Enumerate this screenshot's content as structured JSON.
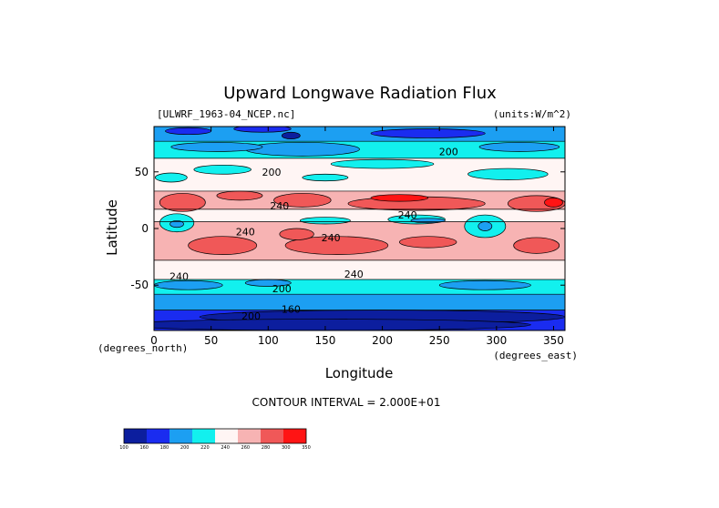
{
  "chart_data": {
    "type": "heatmap",
    "title": "Upward Longwave Radiation Flux",
    "dataset_label": "[ULWRF_1963-04_NCEP.nc]",
    "units_label": "(units:W/m^2)",
    "xlabel": "Longitude",
    "ylabel": "Latitude",
    "x_unit_label": "(degrees_east)",
    "y_unit_label": "(degrees_north)",
    "xlim": [
      0,
      360
    ],
    "ylim": [
      -90,
      90
    ],
    "x_ticks": [
      0,
      50,
      100,
      150,
      200,
      250,
      300,
      350
    ],
    "y_ticks": [
      50,
      0,
      -50
    ],
    "contour_interval_text": "CONTOUR INTERVAL = 2.000E+01",
    "contour_labels": [
      {
        "text": "200",
        "lon": 258,
        "lat": 68
      },
      {
        "text": "200",
        "lon": 103,
        "lat": 50
      },
      {
        "text": "240",
        "lon": 110,
        "lat": 20
      },
      {
        "text": "240",
        "lon": 80,
        "lat": -3
      },
      {
        "text": "240",
        "lon": 155,
        "lat": -8
      },
      {
        "text": "240",
        "lon": 222,
        "lat": 12
      },
      {
        "text": "240",
        "lon": 22,
        "lat": -42
      },
      {
        "text": "240",
        "lon": 175,
        "lat": -40
      },
      {
        "text": "200",
        "lon": 112,
        "lat": -53
      },
      {
        "text": "160",
        "lon": 120,
        "lat": -71
      },
      {
        "text": "200",
        "lon": 85,
        "lat": -77
      }
    ],
    "colorbar": {
      "levels": [
        "100",
        "160",
        "180",
        "200",
        "220",
        "240",
        "260",
        "280",
        "300",
        "350"
      ],
      "colors": [
        "#0c1e9e",
        "#1a2cf0",
        "#1c9ff2",
        "#12f0ee",
        "#fff5f4",
        "#f7b3b3",
        "#f05858",
        "#ff1414"
      ]
    },
    "fill_colors": {
      "c160": "#0c1e9e",
      "c180": "#1a2cf0",
      "c200": "#1c9ff2",
      "c220": "#12f0ee",
      "c240": "#fff5f4",
      "c260": "#f7b3b3",
      "c280": "#f05858",
      "c300": "#ff1414"
    }
  }
}
